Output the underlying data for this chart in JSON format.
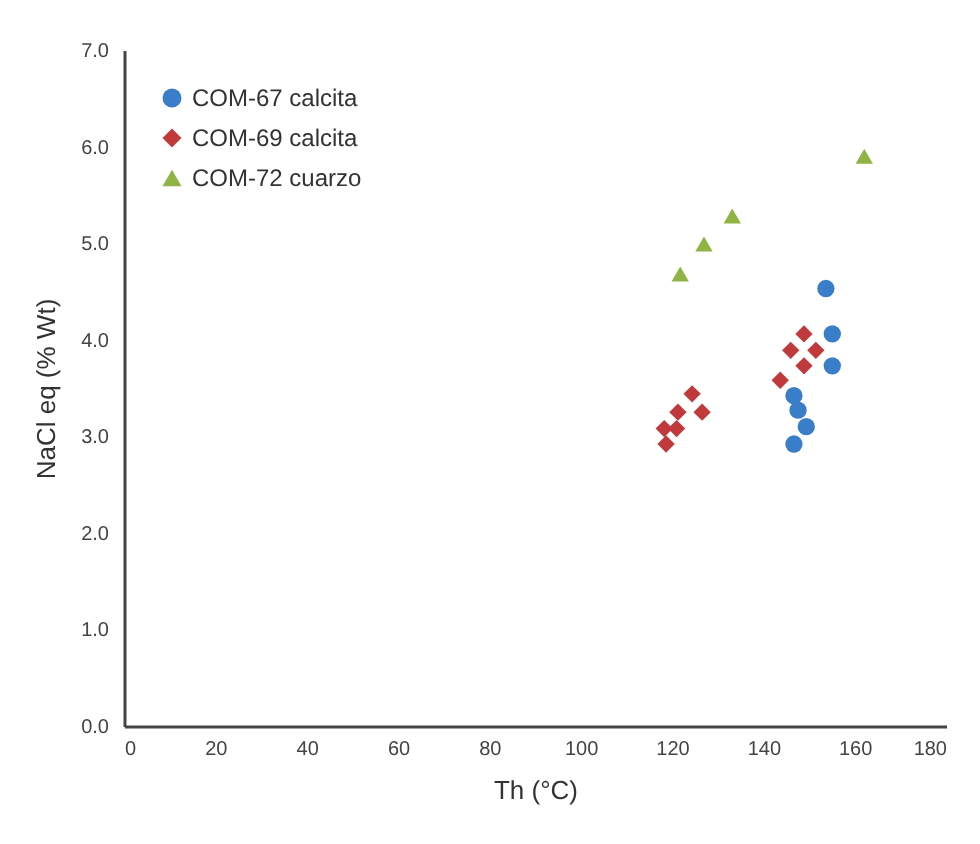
{
  "chart_data": {
    "type": "scatter",
    "xlabel": "Th (°C)",
    "ylabel": "NaCl eq (% Wt)",
    "xlim": [
      0,
      180
    ],
    "xticks": [
      0,
      20,
      40,
      60,
      80,
      100,
      120,
      140,
      160,
      180
    ],
    "ylim": [
      0,
      7
    ],
    "yticks": [
      {
        "value": 0,
        "label": "0.0"
      },
      {
        "value": 1,
        "label": "1.0"
      },
      {
        "value": 2,
        "label": "2.0"
      },
      {
        "value": 3,
        "label": "3.0"
      },
      {
        "value": 4,
        "label": "4.0"
      },
      {
        "value": 5,
        "label": "5.0"
      },
      {
        "value": 6,
        "label": "6.0"
      },
      {
        "value": 7,
        "label": "7.0"
      }
    ],
    "grid": false,
    "legend": "top left",
    "series": [
      {
        "name": "COM-67 calcita",
        "color": "#3a7dc9",
        "marker": "circle",
        "x": [
          153.7,
          155.1,
          155.1,
          146.7,
          147.6,
          149.4,
          146.7
        ],
        "values": [
          4.53,
          4.06,
          3.73,
          3.42,
          3.27,
          3.1,
          2.92
        ]
      },
      {
        "name": "COM-69 calcita",
        "color": "#c0393b",
        "marker": "diamond",
        "x": [
          148.9,
          146,
          151.5,
          148.9,
          143.7,
          124.4,
          121.3,
          126.6,
          118.3,
          121,
          118.7
        ],
        "values": [
          4.06,
          3.89,
          3.89,
          3.73,
          3.58,
          3.44,
          3.25,
          3.25,
          3.08,
          3.08,
          2.92
        ]
      },
      {
        "name": "COM-72 cuarzo",
        "color": "#8fb443",
        "marker": "triangle",
        "x": [
          162.1,
          133.2,
          127,
          121.8
        ],
        "values": [
          5.9,
          5.28,
          4.99,
          4.68
        ]
      }
    ]
  }
}
